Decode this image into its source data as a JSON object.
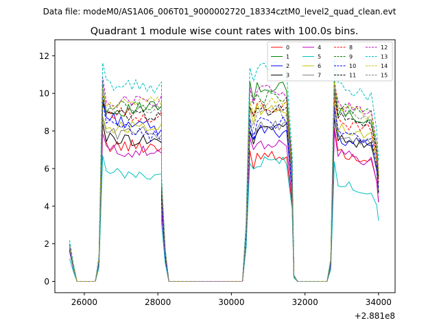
{
  "chart_data": {
    "type": "line",
    "suptitle": "Data file: modeM0/AS1A06_006T01_9000002720_18334cztM0_level2_quad_clean.evt",
    "title": "Quadrant 1 module wise count rates with 100.0s bins.",
    "xlabel": "",
    "ylabel": "",
    "x_offset_label": "+2.881e8",
    "xlim": [
      25200,
      34450
    ],
    "ylim": [
      -0.6,
      12.85
    ],
    "xticks": [
      26000,
      28000,
      30000,
      32000,
      34000
    ],
    "xtick_labels": [
      "26000",
      "28000",
      "30000",
      "32000",
      "34000"
    ],
    "yticks": [
      0,
      2,
      4,
      6,
      8,
      10,
      12
    ],
    "ytick_labels": [
      "0",
      "2",
      "4",
      "6",
      "8",
      "10",
      "12"
    ],
    "grid": false,
    "legend_position": "top-right",
    "legend_columns": 4,
    "segments": [
      {
        "x0": 25600,
        "n": 9,
        "note": "ramp then zero"
      },
      {
        "x0": 26400,
        "n": 20,
        "note": "active interval 1"
      },
      {
        "x0": 28400,
        "n": 20,
        "note": "zero gap"
      },
      {
        "x0": 30400,
        "n": 13,
        "note": "active interval 2"
      },
      {
        "x0": 31700,
        "n": 10,
        "note": "zero gap"
      },
      {
        "x0": 32700,
        "n": 14,
        "note": "active interval 3"
      }
    ],
    "series": [
      {
        "name": "0",
        "color": "#ff0000",
        "dashed": false,
        "levels": [
          1.7,
          7.2,
          7.2,
          6.8,
          6.8
        ]
      },
      {
        "name": "1",
        "color": "#008000",
        "dashed": false,
        "levels": [
          1.9,
          9.0,
          9.3,
          10.3,
          9.0
        ]
      },
      {
        "name": "2",
        "color": "#0000ff",
        "dashed": false,
        "levels": [
          1.8,
          8.8,
          8.0,
          8.0,
          7.6
        ]
      },
      {
        "name": "3",
        "color": "#000000",
        "dashed": false,
        "levels": [
          1.6,
          7.6,
          7.5,
          8.2,
          7.6
        ]
      },
      {
        "name": "4",
        "color": "#bf00bf",
        "dashed": false,
        "levels": [
          1.6,
          7.0,
          6.8,
          7.3,
          6.8
        ]
      },
      {
        "name": "5",
        "color": "#00bfbf",
        "dashed": false,
        "levels": [
          1.2,
          5.7,
          5.6,
          6.4,
          5.2
        ]
      },
      {
        "name": "6",
        "color": "#bfbf00",
        "dashed": false,
        "levels": [
          1.7,
          8.1,
          8.4,
          9.1,
          8.2
        ]
      },
      {
        "name": "7",
        "color": "#808080",
        "dashed": false,
        "levels": [
          1.7,
          7.9,
          7.9,
          8.2,
          7.8
        ]
      },
      {
        "name": "8",
        "color": "#ff0000",
        "dashed": true,
        "levels": [
          1.9,
          9.0,
          8.7,
          9.3,
          8.5
        ]
      },
      {
        "name": "9",
        "color": "#008000",
        "dashed": true,
        "levels": [
          1.9,
          9.3,
          9.4,
          9.8,
          9.3
        ]
      },
      {
        "name": "10",
        "color": "#0000ff",
        "dashed": true,
        "levels": [
          1.7,
          8.4,
          7.6,
          8.4,
          7.9
        ]
      },
      {
        "name": "11",
        "color": "#000000",
        "dashed": true,
        "levels": [
          1.9,
          8.8,
          8.9,
          9.1,
          8.8
        ]
      },
      {
        "name": "12",
        "color": "#bf00bf",
        "dashed": true,
        "levels": [
          2.0,
          9.6,
          9.6,
          10.1,
          9.4
        ]
      },
      {
        "name": "13",
        "color": "#00bfbf",
        "dashed": true,
        "levels": [
          2.2,
          10.5,
          10.3,
          11.4,
          10.3
        ]
      },
      {
        "name": "14",
        "color": "#bfbf00",
        "dashed": true,
        "levels": [
          1.9,
          9.4,
          9.5,
          9.4,
          9.3
        ]
      },
      {
        "name": "15",
        "color": "#808080",
        "dashed": true,
        "levels": [
          1.8,
          9.0,
          9.2,
          9.0,
          9.1
        ]
      }
    ]
  }
}
